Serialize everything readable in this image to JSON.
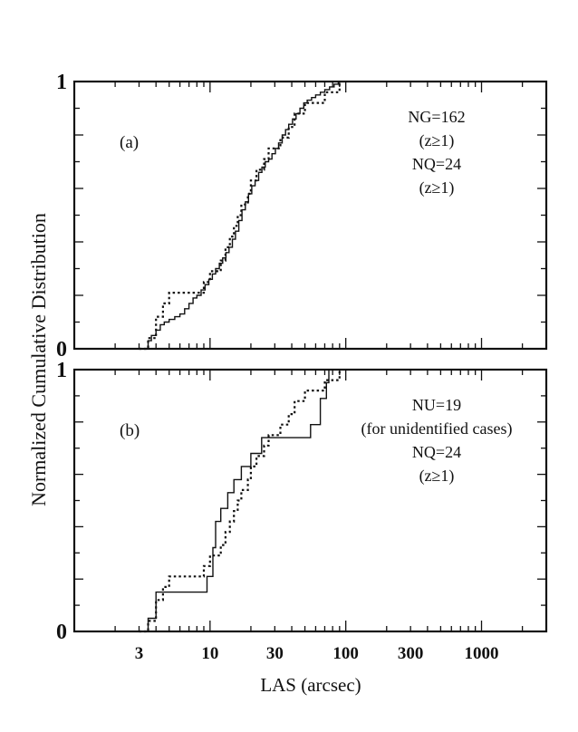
{
  "figure": {
    "ylabel": "Normalized Cumulative Distribution",
    "xlabel": "LAS (arcsec)"
  },
  "chart_data": [
    {
      "type": "line",
      "step": true,
      "panel_label": "(a)",
      "title": "",
      "xlabel": "LAS (arcsec)",
      "ylabel": "Normalized Cumulative Distribution",
      "xscale": "log",
      "xlim": [
        1,
        3000
      ],
      "ylim": [
        0,
        1
      ],
      "xticks": [
        3,
        10,
        30,
        100,
        300,
        1000
      ],
      "xtick_labels": [
        "",
        "",
        "",
        "",
        "",
        ""
      ],
      "yticks": [
        0,
        1
      ],
      "ytick_labels": [
        "0",
        "1"
      ],
      "annotations": [
        "NG=162",
        "(z≥1)",
        "NQ=24",
        "(z≥1)"
      ],
      "series": [
        {
          "name": "NG",
          "style": "solid",
          "x": [
            3.3,
            3.5,
            3.7,
            4.0,
            4.3,
            4.6,
            5.0,
            5.5,
            6.0,
            6.5,
            7.0,
            7.5,
            8.0,
            8.6,
            9.2,
            9.8,
            10.4,
            11.0,
            11.7,
            12.4,
            13.1,
            13.8,
            14.6,
            15.4,
            16.3,
            17.2,
            18.2,
            19.2,
            20.3,
            21.5,
            22.8,
            24.1,
            25.5,
            27,
            28.6,
            30.3,
            32,
            34,
            36,
            38,
            40.5,
            43,
            46,
            49,
            52,
            56,
            60,
            65,
            70,
            76,
            82,
            88,
            95
          ],
          "y": [
            0.0,
            0.03,
            0.05,
            0.07,
            0.09,
            0.1,
            0.11,
            0.12,
            0.13,
            0.15,
            0.17,
            0.19,
            0.2,
            0.22,
            0.24,
            0.26,
            0.28,
            0.3,
            0.32,
            0.34,
            0.36,
            0.38,
            0.41,
            0.44,
            0.48,
            0.52,
            0.55,
            0.58,
            0.61,
            0.63,
            0.66,
            0.68,
            0.7,
            0.71,
            0.73,
            0.75,
            0.77,
            0.8,
            0.82,
            0.84,
            0.86,
            0.88,
            0.9,
            0.92,
            0.93,
            0.94,
            0.95,
            0.96,
            0.97,
            0.98,
            0.99,
            1.0,
            1.0
          ]
        },
        {
          "name": "NQ",
          "style": "dotted",
          "x": [
            3.0,
            3.5,
            4.0,
            4.5,
            5.0,
            6.0,
            7.0,
            9.0,
            10.0,
            12.0,
            13.0,
            14.0,
            15.0,
            16.0,
            17.0,
            19.0,
            20.0,
            22.0,
            25.0,
            27.0,
            33.0,
            38.0,
            42.0,
            50.0,
            70.0,
            90.0
          ],
          "y": [
            0.0,
            0.04,
            0.12,
            0.17,
            0.21,
            0.21,
            0.21,
            0.25,
            0.29,
            0.33,
            0.38,
            0.42,
            0.46,
            0.5,
            0.54,
            0.58,
            0.63,
            0.67,
            0.71,
            0.75,
            0.79,
            0.83,
            0.88,
            0.92,
            0.96,
            1.0
          ]
        }
      ]
    },
    {
      "type": "line",
      "step": true,
      "panel_label": "(b)",
      "title": "",
      "xlabel": "LAS (arcsec)",
      "ylabel": "Normalized Cumulative Distribution",
      "xscale": "log",
      "xlim": [
        1,
        3000
      ],
      "ylim": [
        0,
        1
      ],
      "xticks": [
        3,
        10,
        30,
        100,
        300,
        1000
      ],
      "xtick_labels": [
        "3",
        "10",
        "30",
        "100",
        "300",
        "1000"
      ],
      "yticks": [
        0,
        1
      ],
      "ytick_labels": [
        "0",
        "1"
      ],
      "annotations": [
        "NU=19",
        "(for unidentified cases)",
        "NQ=24",
        "(z≥1)"
      ],
      "series": [
        {
          "name": "NU",
          "style": "solid",
          "x": [
            3.2,
            3.5,
            4.0,
            9.5,
            10.5,
            11.0,
            12.0,
            13.5,
            15.0,
            17.0,
            20.0,
            24.0,
            28.0,
            55.0,
            65.0,
            72.0,
            75.0
          ],
          "y": [
            0.0,
            0.05,
            0.15,
            0.21,
            0.32,
            0.42,
            0.47,
            0.53,
            0.58,
            0.63,
            0.68,
            0.74,
            0.74,
            0.79,
            0.89,
            0.95,
            1.0
          ]
        },
        {
          "name": "NQ",
          "style": "dotted",
          "x": [
            3.0,
            3.5,
            4.0,
            4.5,
            5.0,
            6.0,
            7.0,
            9.0,
            10.0,
            12.0,
            13.0,
            14.0,
            15.0,
            16.0,
            17.0,
            19.0,
            20.0,
            22.0,
            25.0,
            27.0,
            33.0,
            38.0,
            42.0,
            50.0,
            70.0,
            90.0
          ],
          "y": [
            0.0,
            0.04,
            0.12,
            0.17,
            0.21,
            0.21,
            0.21,
            0.25,
            0.29,
            0.33,
            0.38,
            0.42,
            0.46,
            0.5,
            0.54,
            0.58,
            0.63,
            0.67,
            0.71,
            0.75,
            0.79,
            0.83,
            0.88,
            0.92,
            0.96,
            1.0
          ]
        }
      ]
    }
  ]
}
